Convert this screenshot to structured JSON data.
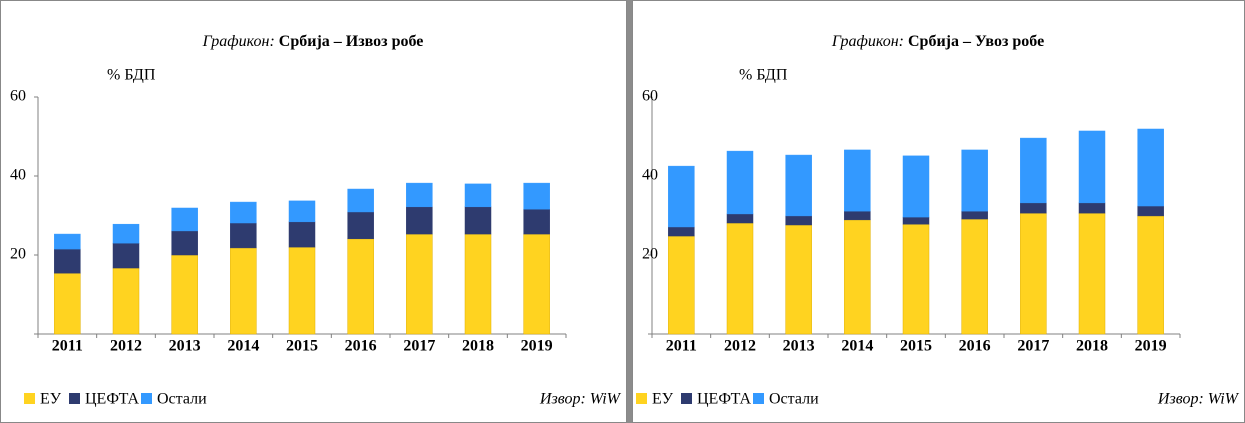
{
  "chart_data": [
    {
      "type": "stacked_bar",
      "title_label": "Графикон:",
      "title": "Србија – Извоз робе",
      "y_label": "% БДП",
      "source": "Извор: WiW",
      "categories": [
        "2011",
        "2012",
        "2013",
        "2014",
        "2015",
        "2016",
        "2017",
        "2018",
        "2019"
      ],
      "series": [
        {
          "name": "ЕУ",
          "color": "#ffd320",
          "values": [
            15.4,
            16.7,
            20.0,
            21.8,
            22.0,
            24.1,
            25.3,
            25.3,
            25.3
          ]
        },
        {
          "name": "ЦЕФТА",
          "color": "#2e3b6f",
          "values": [
            6.1,
            6.3,
            6.1,
            6.3,
            6.4,
            6.8,
            6.9,
            6.9,
            6.3
          ]
        },
        {
          "name": "Остали",
          "color": "#3399ff",
          "values": [
            3.8,
            4.8,
            5.8,
            5.3,
            5.3,
            5.8,
            6.0,
            5.8,
            6.6
          ]
        }
      ],
      "ylim": [
        0,
        60
      ],
      "yticks": [
        20,
        40,
        60
      ],
      "grid": false
    },
    {
      "type": "stacked_bar",
      "title_label": "Графикон:",
      "title": "Србија – Увоз робе",
      "y_label": "% БДП",
      "source": "Извор: WiW",
      "categories": [
        "2011",
        "2012",
        "2013",
        "2014",
        "2015",
        "2016",
        "2017",
        "2018",
        "2019"
      ],
      "series": [
        {
          "name": "ЕУ",
          "color": "#ffd320",
          "values": [
            24.8,
            28.1,
            27.6,
            28.9,
            27.8,
            29.1,
            30.6,
            30.6,
            29.9
          ]
        },
        {
          "name": "ЦЕФТА",
          "color": "#2e3b6f",
          "values": [
            2.3,
            2.3,
            2.3,
            2.2,
            1.8,
            2.0,
            2.6,
            2.6,
            2.5
          ]
        },
        {
          "name": "Остали",
          "color": "#3399ff",
          "values": [
            15.4,
            15.9,
            15.4,
            15.5,
            15.5,
            15.5,
            16.4,
            18.2,
            19.5
          ]
        }
      ],
      "ylim": [
        0,
        60
      ],
      "yticks": [
        20,
        40,
        60
      ],
      "grid": false
    }
  ]
}
